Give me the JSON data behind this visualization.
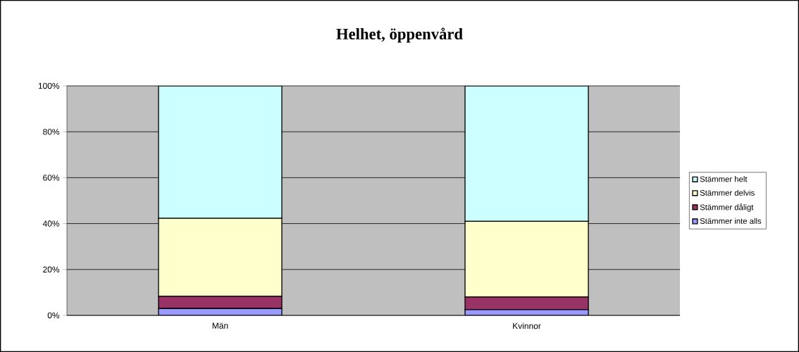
{
  "chart_data": {
    "type": "bar",
    "title": "Helhet, öppenvård",
    "stacked": true,
    "categories": [
      "Män",
      "Kvinnor"
    ],
    "series": [
      {
        "name": "Stämmer inte alls",
        "color": "#9999ff",
        "values": [
          3,
          2.5
        ]
      },
      {
        "name": "Stämmer dåligt",
        "color": "#993366",
        "values": [
          5.3,
          5.5
        ]
      },
      {
        "name": "Stämmer delvis",
        "color": "#ffffcc",
        "values": [
          34,
          33
        ]
      },
      {
        "name": "Stämmer helt",
        "color": "#ccffff",
        "values": [
          57.7,
          59
        ]
      }
    ],
    "ylim": [
      0,
      100
    ],
    "yticks": [
      {
        "value": 0,
        "label": "0%"
      },
      {
        "value": 20,
        "label": "20%"
      },
      {
        "value": 40,
        "label": "40%"
      },
      {
        "value": 60,
        "label": "60%"
      },
      {
        "value": 80,
        "label": "80%"
      },
      {
        "value": 100,
        "label": "100%"
      }
    ],
    "grid": "y",
    "legend": "right"
  }
}
